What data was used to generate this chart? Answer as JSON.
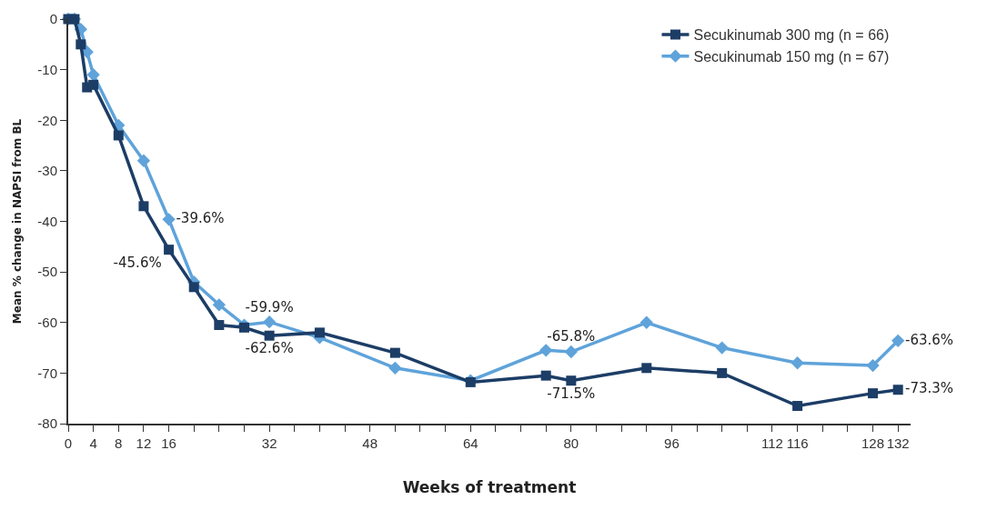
{
  "chart_data": {
    "type": "line",
    "xlabel": "Weeks of treatment",
    "ylabel": "Mean % change in NAPSI from BL",
    "x": [
      0,
      1,
      2,
      3,
      4,
      8,
      12,
      16,
      20,
      24,
      28,
      32,
      40,
      52,
      64,
      76,
      80,
      92,
      104,
      116,
      128,
      132
    ],
    "series": [
      {
        "name": "Secukinumab 300 mg (n = 66)",
        "color": "#1c3d66",
        "marker": "square",
        "values": [
          0,
          0,
          -5,
          -13.5,
          -13,
          -23,
          -37,
          -45.6,
          -53,
          -60.5,
          -61,
          -62.6,
          -62,
          -66,
          -71.8,
          -70.5,
          -71.5,
          -69,
          -70,
          -76.5,
          -74,
          -73.3
        ],
        "value_labels": [
          null,
          null,
          null,
          null,
          null,
          null,
          null,
          "-45.6%",
          null,
          null,
          null,
          "-62.6%",
          null,
          null,
          null,
          null,
          "-71.5%",
          null,
          null,
          null,
          null,
          "-73.3%"
        ]
      },
      {
        "name": "Secukinumab 150 mg (n = 67)",
        "color": "#5fa3da",
        "marker": "diamond",
        "values": [
          0,
          0,
          -2,
          -6.5,
          -11,
          -21,
          -28,
          -39.6,
          -52,
          -56.5,
          -60.5,
          -59.9,
          -63,
          -69,
          -71.5,
          -65.5,
          -65.8,
          -60,
          -65,
          -68,
          -68.5,
          -63.6
        ],
        "value_labels": [
          null,
          null,
          null,
          null,
          null,
          null,
          null,
          "-39.6%",
          null,
          null,
          null,
          "-59.9%",
          null,
          null,
          null,
          null,
          "-65.8%",
          null,
          null,
          null,
          null,
          "-63.6%"
        ]
      }
    ],
    "xlim": [
      0,
      134
    ],
    "xticks": [
      0,
      4,
      8,
      12,
      16,
      {
        "value": 20,
        "label": null
      },
      {
        "value": 24,
        "label": null
      },
      {
        "value": 28,
        "label": null
      },
      32,
      {
        "value": 36,
        "label": null
      },
      {
        "value": 40,
        "label": null
      },
      {
        "value": 44,
        "label": null
      },
      48,
      {
        "value": 52,
        "label": null
      },
      {
        "value": 56,
        "label": null
      },
      {
        "value": 60,
        "label": null
      },
      64,
      {
        "value": 68,
        "label": null
      },
      {
        "value": 72,
        "label": null
      },
      {
        "value": 76,
        "label": null
      },
      80,
      {
        "value": 84,
        "label": null
      },
      {
        "value": 88,
        "label": null
      },
      {
        "value": 92,
        "label": null
      },
      96,
      {
        "value": 100,
        "label": null
      },
      {
        "value": 104,
        "label": null
      },
      {
        "value": 108,
        "label": null
      },
      112,
      116,
      {
        "value": 120,
        "label": null
      },
      {
        "value": 124,
        "label": null
      },
      128,
      132
    ],
    "ylim": [
      -80,
      0
    ],
    "yticks": [
      -80,
      -70,
      -60,
      -50,
      -40,
      -30,
      -20,
      -10,
      0
    ],
    "legend": "top right",
    "line_style": "solid"
  }
}
